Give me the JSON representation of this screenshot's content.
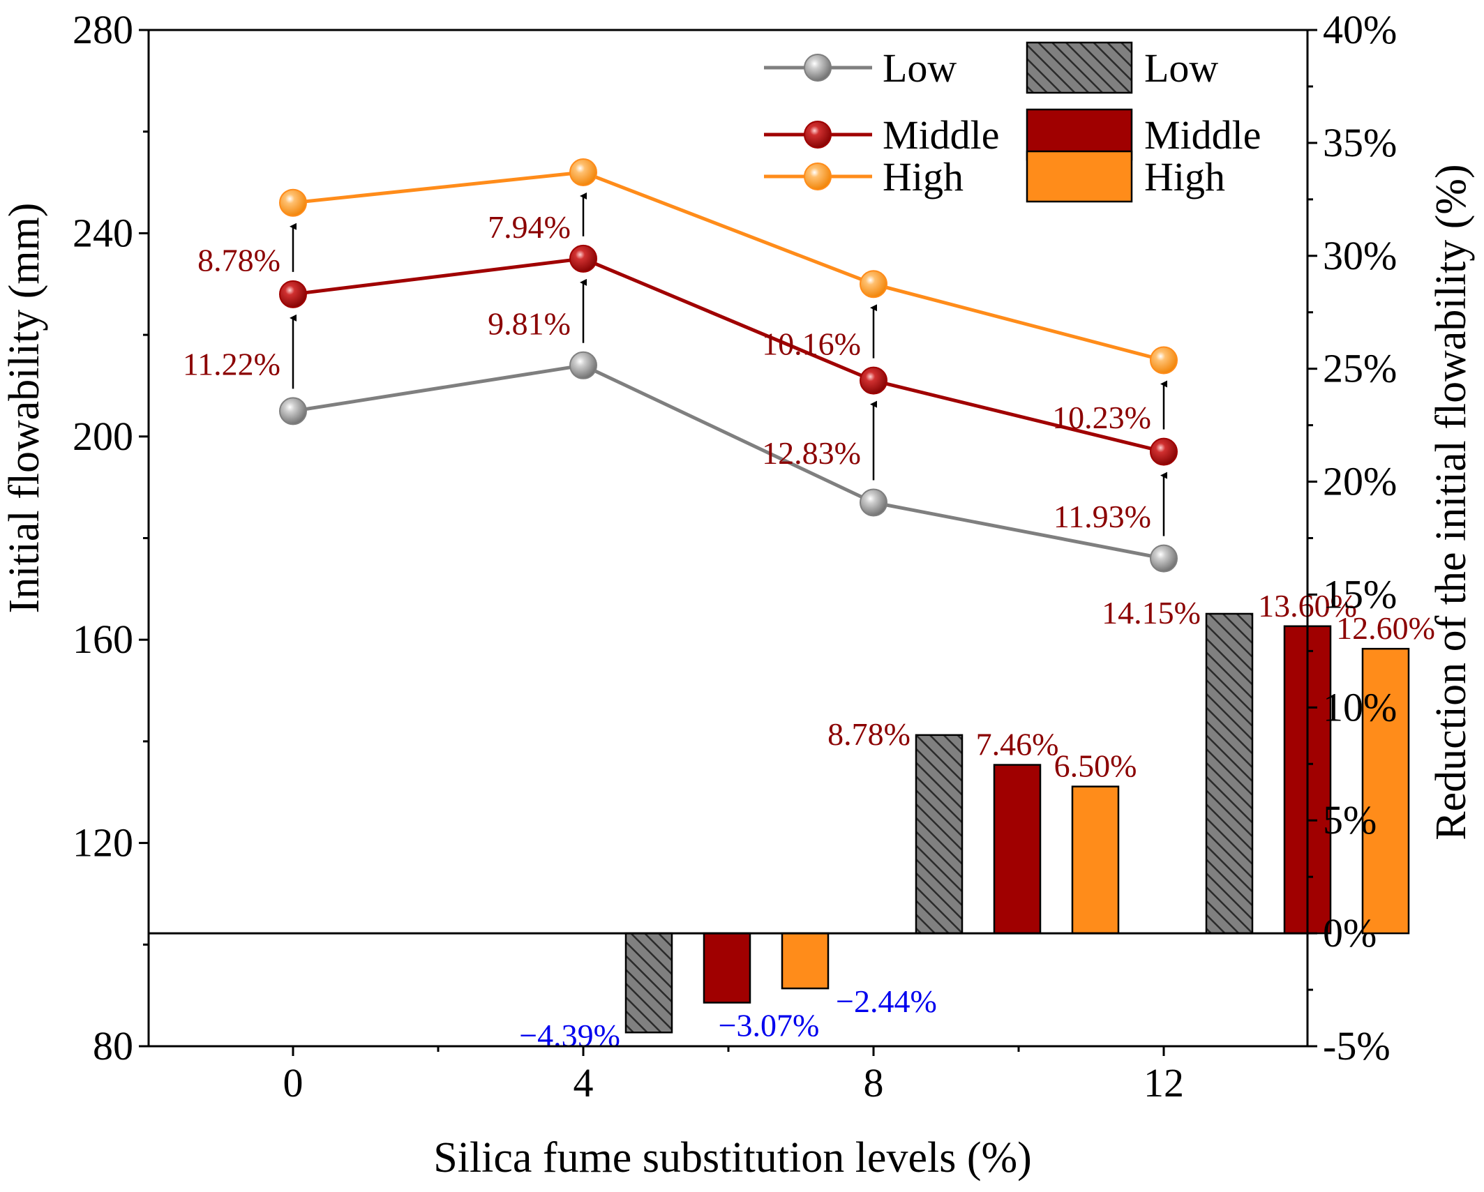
{
  "chart_data": {
    "type": "bar+line",
    "x": [
      0,
      4,
      8,
      12
    ],
    "xlabel": "Silica fume substitution levels (%)",
    "ylabel_left": "Initial flowability (mm)",
    "ylabel_right": "Reduction of the initial flowability (%)",
    "ylim_left": [
      80,
      280
    ],
    "yticks_left": [
      80,
      120,
      160,
      200,
      240,
      280
    ],
    "ylim_right": [
      -5,
      40
    ],
    "yticks_right": [
      -5,
      0,
      5,
      10,
      15,
      20,
      25,
      30,
      35,
      40
    ],
    "ytick_labels_right": [
      "-5%",
      "0%",
      "5%",
      "10%",
      "15%",
      "20%",
      "25%",
      "30%",
      "35%",
      "40%"
    ],
    "xticks": [
      0,
      4,
      8,
      12
    ],
    "line_series": [
      {
        "name": "Low",
        "color": "#7f7f7f",
        "values": [
          205,
          214,
          187,
          176
        ]
      },
      {
        "name": "Middle",
        "color": "#a00000",
        "values": [
          228,
          235,
          211,
          197
        ]
      },
      {
        "name": "High",
        "color": "#ff8c1a",
        "values": [
          246,
          252,
          230,
          215
        ]
      }
    ],
    "bar_series": [
      {
        "name": "Low",
        "color": "#808080",
        "pattern": "hatch",
        "values": [
          null,
          -4.39,
          8.78,
          14.15
        ],
        "labels": [
          "",
          "−4.39%",
          "8.78%",
          "14.15%"
        ]
      },
      {
        "name": "Middle",
        "color": "#a00000",
        "values": [
          null,
          -3.07,
          7.46,
          13.6
        ],
        "labels": [
          "",
          "−3.07%",
          "7.46%",
          "13.60%"
        ]
      },
      {
        "name": "High",
        "color": "#ff8c1a",
        "values": [
          null,
          -2.44,
          6.5,
          12.6
        ],
        "labels": [
          "",
          "−2.44%",
          "6.50%",
          "12.60%"
        ]
      }
    ],
    "increase_annotations": [
      {
        "x": 0,
        "from": 205,
        "to": 228,
        "label": "11.22%"
      },
      {
        "x": 0,
        "from": 228,
        "to": 246,
        "label": "8.78%"
      },
      {
        "x": 4,
        "from": 214,
        "to": 235,
        "label": "9.81%"
      },
      {
        "x": 4,
        "from": 235,
        "to": 252,
        "label": "7.94%"
      },
      {
        "x": 8,
        "from": 187,
        "to": 211,
        "label": "12.83%"
      },
      {
        "x": 8,
        "from": 211,
        "to": 230,
        "label": "10.16%"
      },
      {
        "x": 12,
        "from": 176,
        "to": 197,
        "label": "11.93%"
      },
      {
        "x": 12,
        "from": 197,
        "to": 215,
        "label": "10.23%"
      }
    ],
    "annotation_color": "#8b0000",
    "negative_label_color": "#0000ee",
    "legend": {
      "placement": "top-right",
      "line_entries": [
        "Low",
        "Middle",
        "High"
      ],
      "bar_entries": [
        "Low",
        "Middle",
        "High"
      ]
    }
  }
}
